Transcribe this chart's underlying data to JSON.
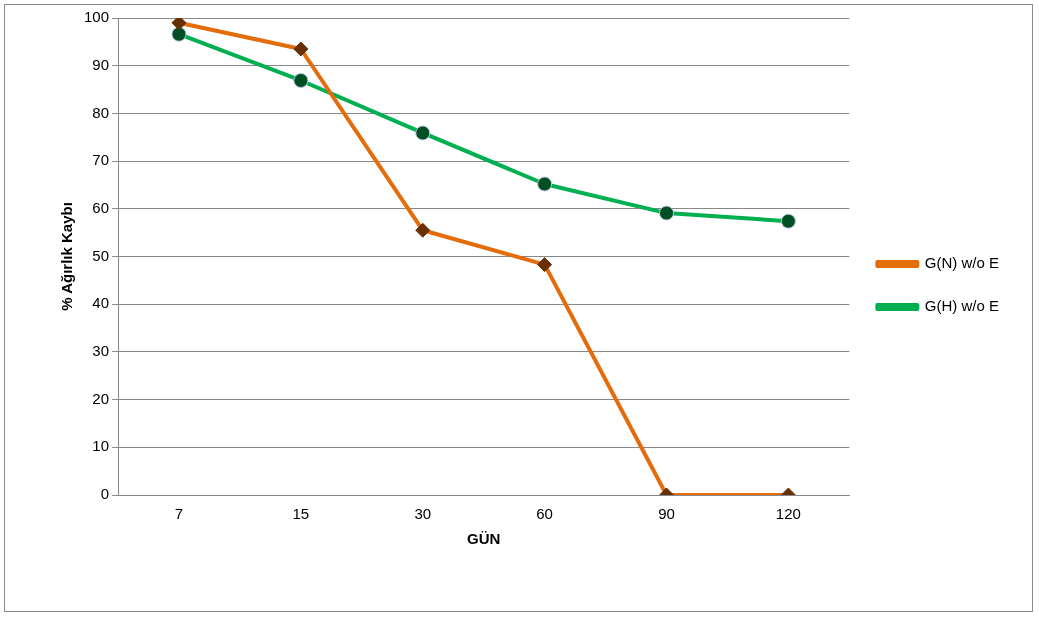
{
  "chart_data": {
    "type": "line",
    "xlabel": "GÜN",
    "ylabel": "% Ağırlık Kaybı",
    "categories": [
      "7",
      "15",
      "30",
      "60",
      "90",
      "120"
    ],
    "series": [
      {
        "name": "G(N) w/o E",
        "color": "#e46c0a",
        "marker": "diamond",
        "values": [
          99,
          93.5,
          55.5,
          48.3,
          0,
          0
        ]
      },
      {
        "name": "G(H) w/o E",
        "color": "#00b050",
        "marker": "circle",
        "values": [
          96.6,
          86.9,
          75.9,
          65.2,
          59.1,
          57.4
        ]
      }
    ],
    "ylim": [
      0,
      100
    ],
    "yticks": [
      0,
      10,
      20,
      30,
      40,
      50,
      60,
      70,
      80,
      90,
      100
    ],
    "grid": "y",
    "legend": "right"
  }
}
